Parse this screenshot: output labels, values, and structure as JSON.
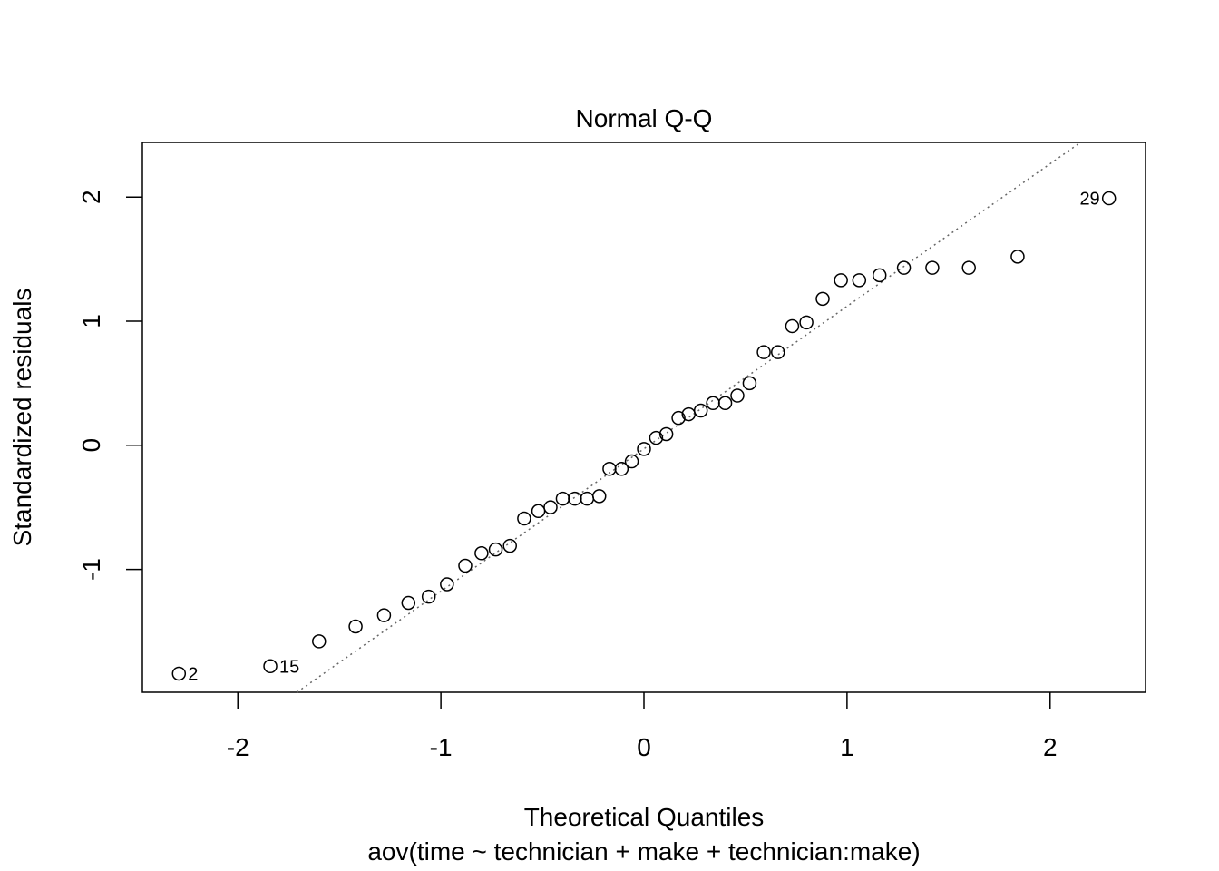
{
  "chart_data": {
    "type": "scatter",
    "title": "Normal Q-Q",
    "xlabel": "Theoretical Quantiles",
    "subtitle": "aov(time ~ technician + make + technician:make)",
    "ylabel": "Standardized residuals",
    "xlim": [
      -2.47,
      2.47
    ],
    "ylim": [
      -1.99,
      2.44
    ],
    "x_ticks": [
      -2,
      -1,
      0,
      1,
      2
    ],
    "x_tick_labels": [
      "-2",
      "-1",
      "0",
      "1",
      "2"
    ],
    "y_ticks": [
      -1,
      0,
      1,
      2
    ],
    "y_tick_labels": [
      "-1",
      "0",
      "1",
      "2"
    ],
    "grid": false,
    "reference_line": {
      "style": "dotted",
      "color": "#666666",
      "p1": [
        -1.7,
        -1.98
      ],
      "p2": [
        2.15,
        2.44
      ]
    },
    "points": [
      {
        "x": -2.29,
        "y": -1.84,
        "label": "2"
      },
      {
        "x": -1.84,
        "y": -1.78,
        "label": "15"
      },
      {
        "x": -1.6,
        "y": -1.58
      },
      {
        "x": -1.42,
        "y": -1.46
      },
      {
        "x": -1.28,
        "y": -1.37
      },
      {
        "x": -1.16,
        "y": -1.27
      },
      {
        "x": -1.06,
        "y": -1.22
      },
      {
        "x": -0.97,
        "y": -1.12
      },
      {
        "x": -0.88,
        "y": -0.97
      },
      {
        "x": -0.8,
        "y": -0.87
      },
      {
        "x": -0.73,
        "y": -0.84
      },
      {
        "x": -0.66,
        "y": -0.81
      },
      {
        "x": -0.59,
        "y": -0.59
      },
      {
        "x": -0.52,
        "y": -0.53
      },
      {
        "x": -0.46,
        "y": -0.5
      },
      {
        "x": -0.4,
        "y": -0.43
      },
      {
        "x": -0.34,
        "y": -0.43
      },
      {
        "x": -0.28,
        "y": -0.43
      },
      {
        "x": -0.22,
        "y": -0.41
      },
      {
        "x": -0.17,
        "y": -0.19
      },
      {
        "x": -0.11,
        "y": -0.19
      },
      {
        "x": -0.06,
        "y": -0.13
      },
      {
        "x": 0.0,
        "y": -0.03
      },
      {
        "x": 0.06,
        "y": 0.06
      },
      {
        "x": 0.11,
        "y": 0.09
      },
      {
        "x": 0.17,
        "y": 0.22
      },
      {
        "x": 0.22,
        "y": 0.25
      },
      {
        "x": 0.28,
        "y": 0.28
      },
      {
        "x": 0.34,
        "y": 0.34
      },
      {
        "x": 0.4,
        "y": 0.34
      },
      {
        "x": 0.46,
        "y": 0.4
      },
      {
        "x": 0.52,
        "y": 0.5
      },
      {
        "x": 0.59,
        "y": 0.75
      },
      {
        "x": 0.66,
        "y": 0.75
      },
      {
        "x": 0.73,
        "y": 0.96
      },
      {
        "x": 0.8,
        "y": 0.99
      },
      {
        "x": 0.88,
        "y": 1.18
      },
      {
        "x": 0.97,
        "y": 1.33
      },
      {
        "x": 1.06,
        "y": 1.33
      },
      {
        "x": 1.16,
        "y": 1.37
      },
      {
        "x": 1.28,
        "y": 1.43
      },
      {
        "x": 1.42,
        "y": 1.43
      },
      {
        "x": 1.6,
        "y": 1.43
      },
      {
        "x": 1.84,
        "y": 1.52
      },
      {
        "x": 2.29,
        "y": 1.99,
        "label": "29"
      }
    ]
  }
}
